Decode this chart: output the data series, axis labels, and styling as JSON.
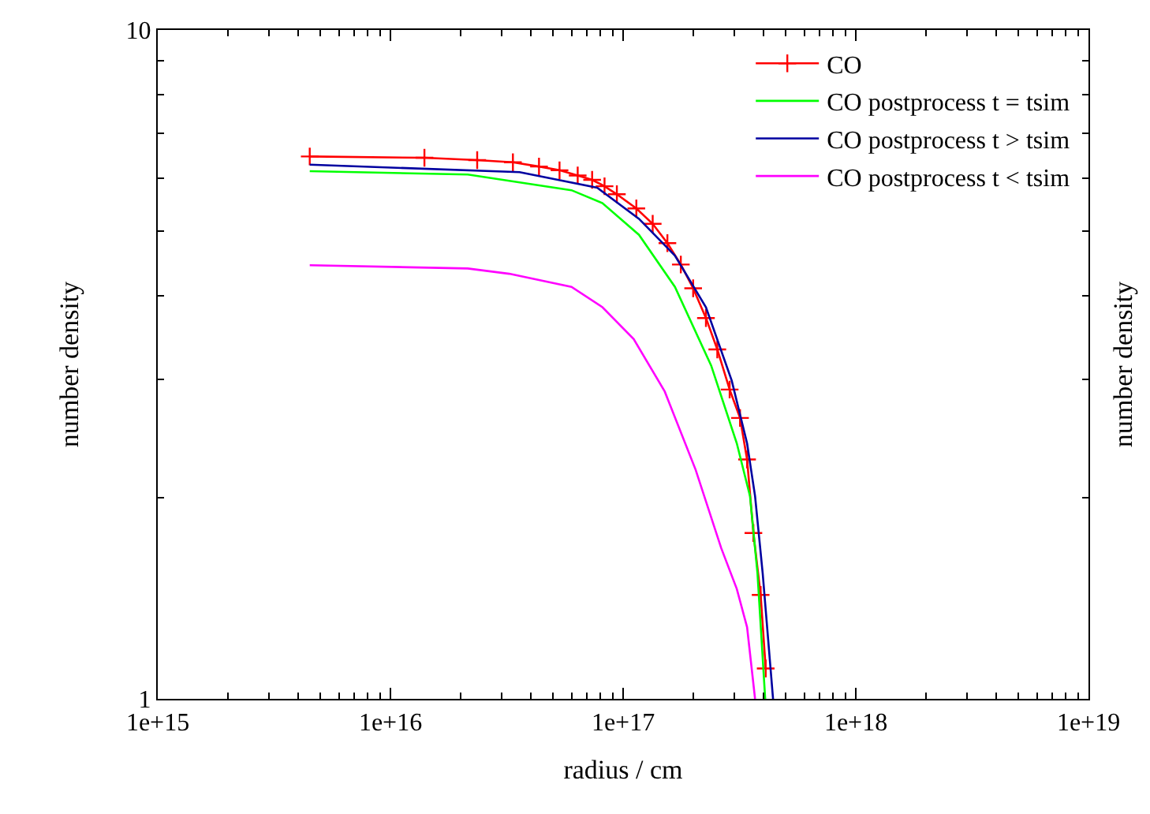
{
  "chart_data": {
    "type": "line",
    "xlabel": "radius / cm",
    "ylabel": "number density",
    "y2label": "number density",
    "log": "xy",
    "xlim": [
      1000000000000000.0,
      1e+19
    ],
    "xticks": [
      {
        "value": 1000000000000000.0,
        "label": "1e+15"
      },
      {
        "value": 1e+16,
        "label": "1e+16"
      },
      {
        "value": 1e+17,
        "label": "1e+17"
      },
      {
        "value": 1e+18,
        "label": "1e+18"
      },
      {
        "value": 1e+19,
        "label": "1e+19"
      }
    ],
    "ylim": [
      1,
      10
    ],
    "yticks": [
      1,
      10
    ],
    "legend": "top right",
    "line_style": "solid",
    "series": [
      {
        "name": "CO",
        "color": "#ff0000",
        "marker": "cross",
        "x": [
          4500000000000000.0,
          1.4e+16,
          2.36e+16,
          3.36e+16,
          4.35e+16,
          5.33e+16,
          6.38e+16,
          7.36e+16,
          8.32e+16,
          9.4e+16,
          1.14e+17,
          1.34e+17,
          1.55e+17,
          1.77e+17,
          2e+17,
          2.27e+17,
          2.54e+17,
          2.87e+17,
          3.18e+17,
          3.41e+17,
          3.63e+17,
          3.9e+17,
          4.1e+17
        ],
        "values": [
          6.47,
          6.44,
          6.39,
          6.34,
          6.25,
          6.17,
          6.06,
          5.97,
          5.84,
          5.68,
          5.41,
          5.13,
          4.8,
          4.46,
          4.11,
          3.71,
          3.33,
          2.9,
          2.63,
          2.28,
          1.77,
          1.43,
          1.11
        ]
      },
      {
        "name": "CO postprocess t = tsim",
        "color": "#00ff00",
        "marker": "none",
        "x": [
          4500000000000000.0,
          2.15e+16,
          6e+16,
          8.15e+16,
          1.17e+17,
          1.67e+17,
          2.39e+17,
          3.08e+17,
          3.51e+17,
          3.78e+17,
          4.08e+17
        ],
        "values": [
          6.15,
          6.08,
          5.76,
          5.51,
          4.94,
          4.13,
          3.15,
          2.41,
          2.01,
          1.54,
          1
        ]
      },
      {
        "name": "CO postprocess t > tsim",
        "color": "#0000a0",
        "marker": "none",
        "x": [
          4500000000000000.0,
          3.59e+16,
          7.74e+16,
          1.17e+17,
          1.67e+17,
          2.27e+17,
          2.93e+17,
          3.41e+17,
          3.69e+17,
          3.98e+17,
          4.41e+17
        ],
        "values": [
          6.29,
          6.13,
          5.81,
          5.22,
          4.6,
          3.85,
          2.99,
          2.41,
          2.01,
          1.54,
          1
        ]
      },
      {
        "name": "CO postprocess t < tsim",
        "color": "#ff00ff",
        "marker": "none",
        "x": [
          4500000000000000.0,
          2.15e+16,
          3.24e+16,
          6e+16,
          8.15e+16,
          1.11e+17,
          1.51e+17,
          2.05e+17,
          2.64e+17,
          3.08e+17,
          3.41e+17,
          3.69e+17
        ],
        "values": [
          4.45,
          4.4,
          4.32,
          4.13,
          3.85,
          3.45,
          2.88,
          2.2,
          1.68,
          1.46,
          1.28,
          1
        ]
      }
    ]
  }
}
